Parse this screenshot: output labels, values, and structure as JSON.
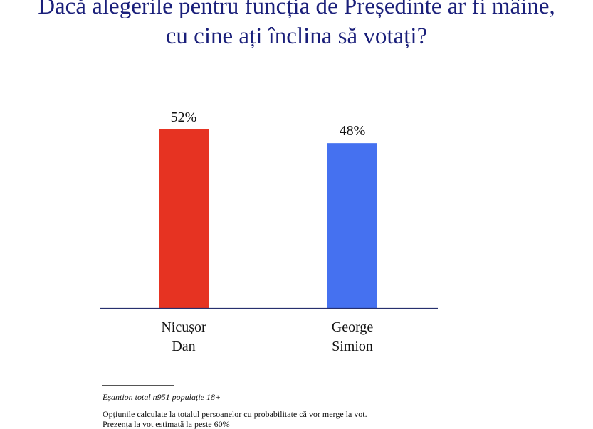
{
  "header": {
    "title_line_1": "Dacă alegerile pentru funcția de Președinte ar fi mâine,",
    "title_line_2": "cu cine ați înclina să votați?"
  },
  "chart_data": {
    "type": "bar",
    "title": "Dacă alegerile pentru funcția de Președinte ar fi mâine, cu cine ați înclina să votați?",
    "categories": [
      "Nicușor Dan",
      "George Simion"
    ],
    "category_label_lines": [
      [
        "Nicușor",
        "Dan"
      ],
      [
        "George",
        "Simion"
      ]
    ],
    "values": [
      52,
      48
    ],
    "value_labels": [
      "52%",
      "48%"
    ],
    "colors": [
      "#e63322",
      "#4571f0"
    ],
    "xlabel": "",
    "ylabel": "",
    "grid": false,
    "legend": "none"
  },
  "footnotes": {
    "sample": "Eșantion total n951 populație 18+",
    "note_1": "Opțiunile calculate la totalul persoanelor cu probabilitate că vor merge la vot.",
    "note_2": "Prezența la vot estimată la peste 60%"
  }
}
